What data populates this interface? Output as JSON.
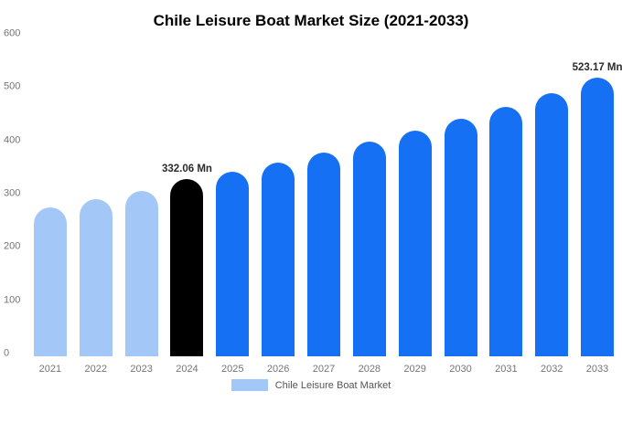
{
  "title": "Chile Leisure Boat Market Size (2021-2033)",
  "legend": {
    "label": "Chile Leisure Boat Market",
    "swatch_color": "#a3c8f7"
  },
  "colors": {
    "past_bar": "#a3c8f7",
    "highlight_bar": "#000000",
    "forecast_bar": "#1670f4",
    "axis_text": "#757575",
    "annotation_text": "#2b2b2b",
    "background": "#ffffff"
  },
  "chart_data": {
    "type": "bar",
    "title": "Chile Leisure Boat Market Size (2021-2033)",
    "xlabel": "",
    "ylabel": "",
    "categories": [
      "2021",
      "2022",
      "2023",
      "2024",
      "2025",
      "2026",
      "2027",
      "2028",
      "2029",
      "2030",
      "2031",
      "2032",
      "2033"
    ],
    "values": [
      280,
      295,
      311,
      332.06,
      346,
      363,
      382,
      402,
      423,
      445,
      468,
      494,
      523.17
    ],
    "bar_colors": [
      "#a3c8f7",
      "#a3c8f7",
      "#a3c8f7",
      "#000000",
      "#1670f4",
      "#1670f4",
      "#1670f4",
      "#1670f4",
      "#1670f4",
      "#1670f4",
      "#1670f4",
      "#1670f4",
      "#1670f4"
    ],
    "annotations": [
      {
        "category": "2024",
        "text": "332.06 Mn"
      },
      {
        "category": "2033",
        "text": "523.17 Mn"
      }
    ],
    "ylim": [
      0,
      600
    ],
    "yticks": [
      0,
      100,
      200,
      300,
      400,
      500,
      600
    ],
    "grid": false,
    "legend_position": "bottom",
    "legend_entries": [
      "Chile Leisure Boat Market"
    ]
  }
}
